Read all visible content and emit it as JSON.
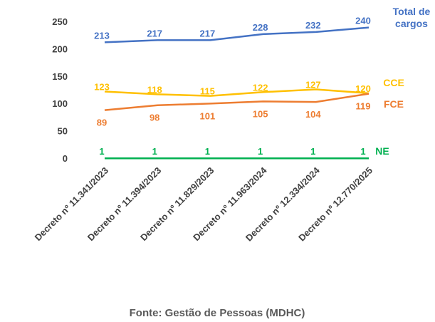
{
  "chart_data": {
    "type": "line",
    "categories": [
      "Decreto nº 11.341/2023",
      "Decreto nº 11.394/2023",
      "Decreto nº 11.829/2023",
      "Decreto nº 11.963/2024",
      "Decreto nº 12.334/2024",
      "Decreto nº 12.770/2025"
    ],
    "series": [
      {
        "name": "Total de cargos",
        "color": "#4472c4",
        "values": [
          213,
          217,
          217,
          228,
          232,
          240
        ]
      },
      {
        "name": "CCE",
        "color": "#ffc000",
        "values": [
          123,
          118,
          115,
          122,
          127,
          120
        ]
      },
      {
        "name": "FCE",
        "color": "#ed7d31",
        "values": [
          89,
          98,
          101,
          105,
          104,
          119
        ]
      },
      {
        "name": "NE",
        "color": "#00b050",
        "values": [
          1,
          1,
          1,
          1,
          1,
          1
        ]
      }
    ],
    "ylim": [
      0,
      250
    ],
    "yticks": [
      0,
      50,
      100,
      150,
      200,
      250
    ],
    "grid": false,
    "source": "Fonte: Gestão de Pessoas (MDHC)"
  }
}
